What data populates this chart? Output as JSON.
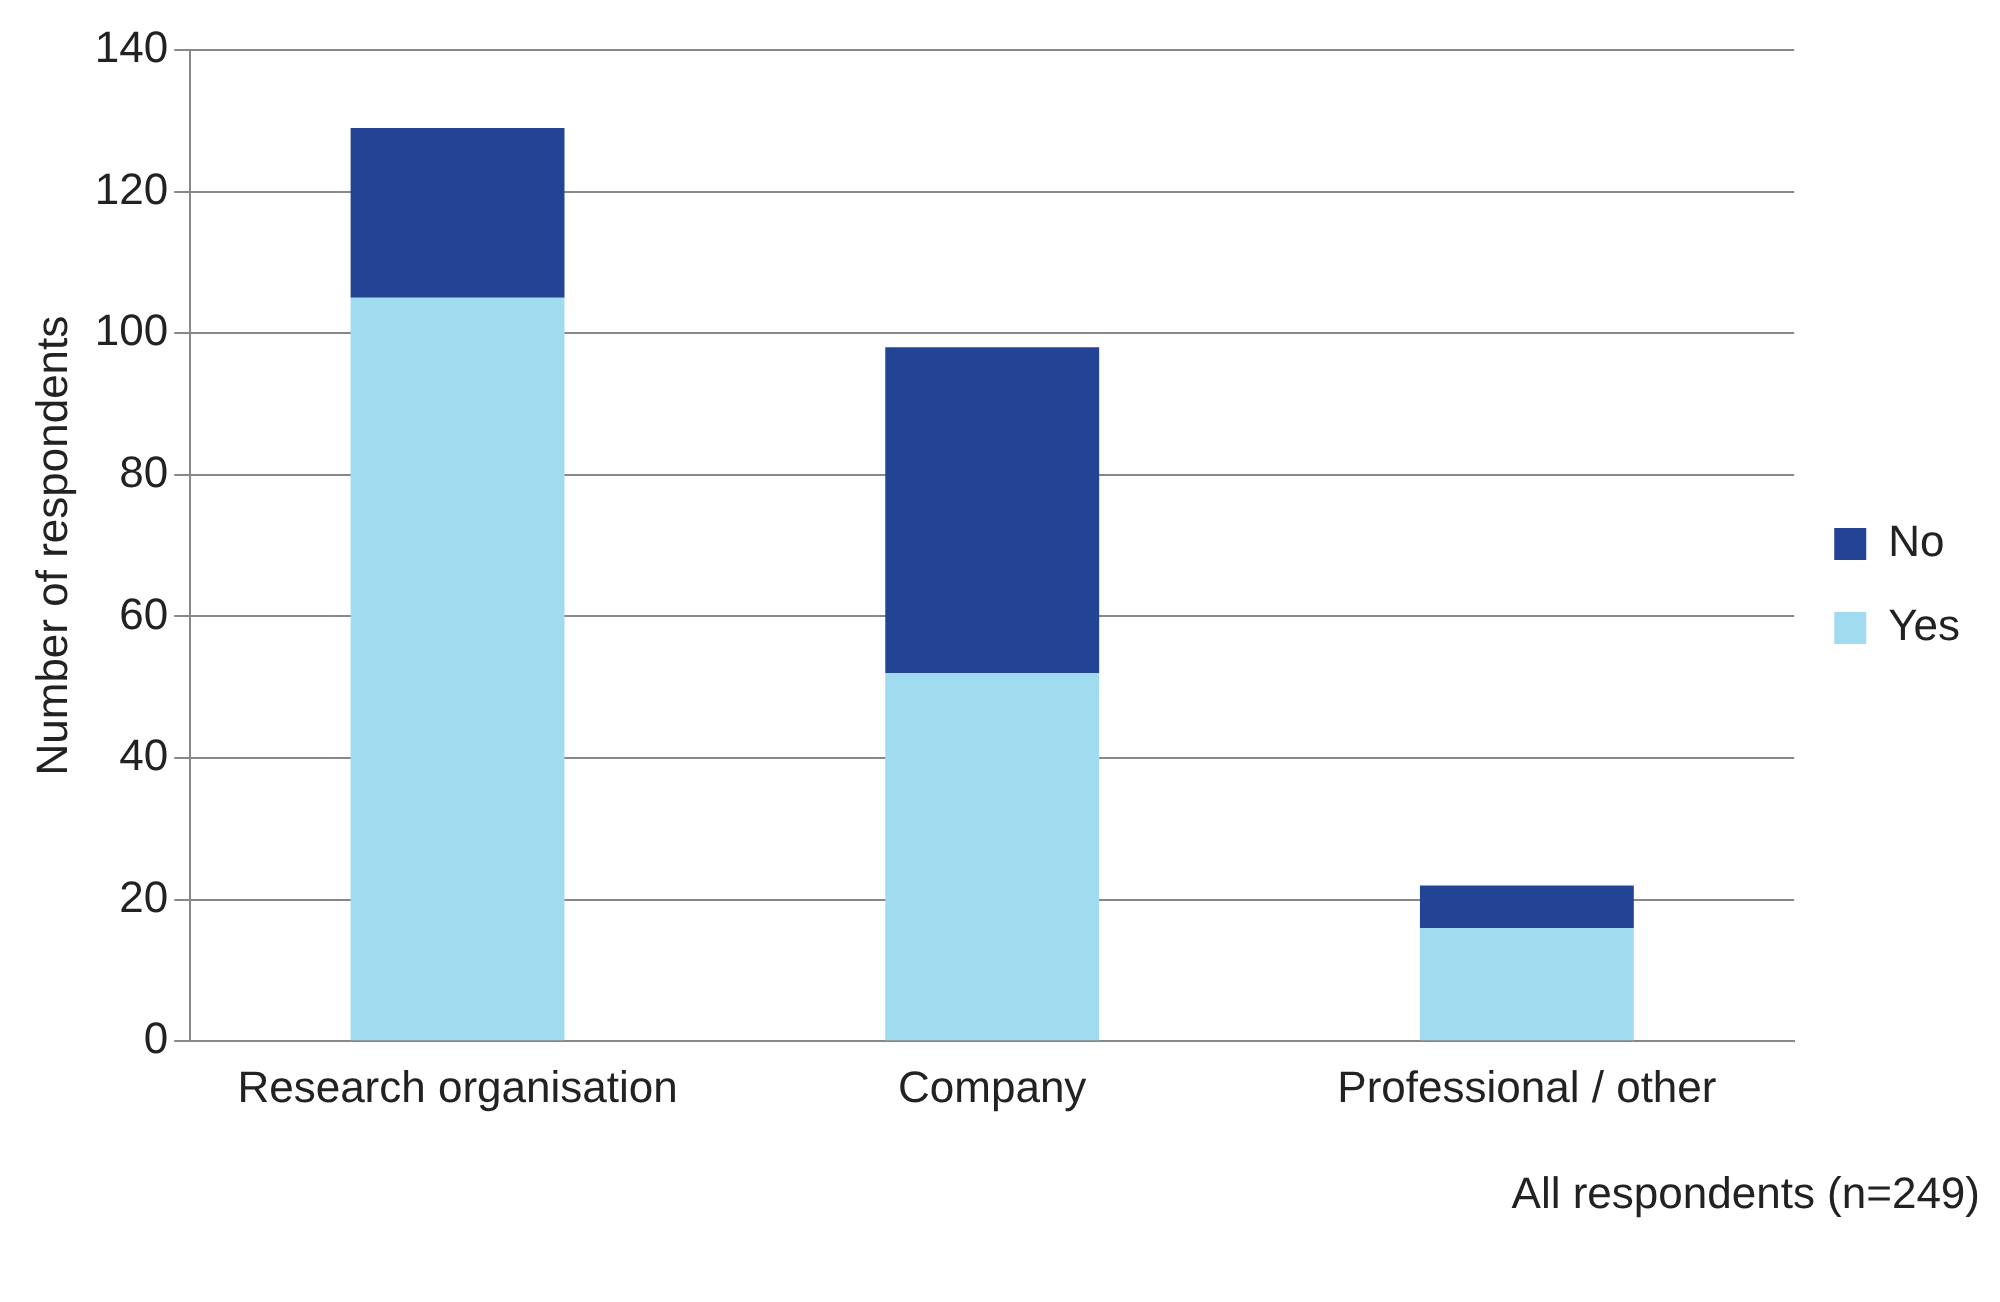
{
  "chart_data": {
    "type": "bar",
    "stacked": true,
    "ylabel": "Number of respondents",
    "categories": [
      "Research organisation",
      "Company",
      "Professional / other"
    ],
    "series": [
      {
        "name": "Yes",
        "color": "#a1dbef",
        "values": [
          105,
          52,
          16
        ]
      },
      {
        "name": "No",
        "color": "#234395",
        "values": [
          24,
          46,
          6
        ]
      }
    ],
    "ylim": [
      0,
      140
    ],
    "yticks": [
      0,
      20,
      40,
      60,
      80,
      100,
      120,
      140
    ],
    "grid": "y",
    "legend": "right",
    "annotations": [
      "All respondents (n=249)"
    ]
  }
}
